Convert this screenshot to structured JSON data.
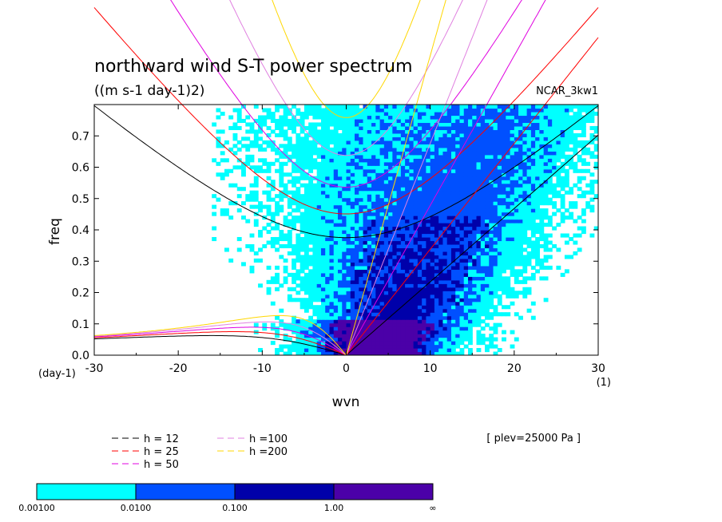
{
  "chart_data": {
    "type": "heatmap",
    "title": "northward wind S-T power spectrum",
    "subtitle": "((m s-1 day-1)2)",
    "model_label": "NCAR_3kw1",
    "xlabel": "wvn",
    "ylabel": "freq",
    "x_unit": "(1)",
    "y_unit": "(day-1)",
    "xlim": [
      -30,
      30
    ],
    "ylim": [
      0,
      0.8
    ],
    "x_ticks": [
      "-30",
      "-20",
      "-10",
      "0",
      "10",
      "20",
      "30"
    ],
    "y_ticks": [
      "0.0",
      "0.1",
      "0.2",
      "0.3",
      "0.4",
      "0.5",
      "0.6",
      "0.7"
    ],
    "contour_levels": [
      "0.00100",
      "0.0100",
      "0.100",
      "1.00",
      "∞"
    ],
    "colors": [
      "#00ffff",
      "#0050ff",
      "#0000aa",
      "#4b00a8"
    ],
    "plev_note": "[ plev=25000 Pa ]",
    "dispersion_curves": [
      {
        "label": "h = 12",
        "color": "#000000",
        "h": 12
      },
      {
        "label": "h = 25",
        "color": "#ff0000",
        "h": 25
      },
      {
        "label": "h = 50",
        "color": "#e000e0",
        "h": 50
      },
      {
        "label": "h =100",
        "color": "#e080e0",
        "h": 100
      },
      {
        "label": "h =200",
        "color": "#ffd700",
        "h": 200
      }
    ],
    "grid": false,
    "legend_position": "bottom-left"
  }
}
